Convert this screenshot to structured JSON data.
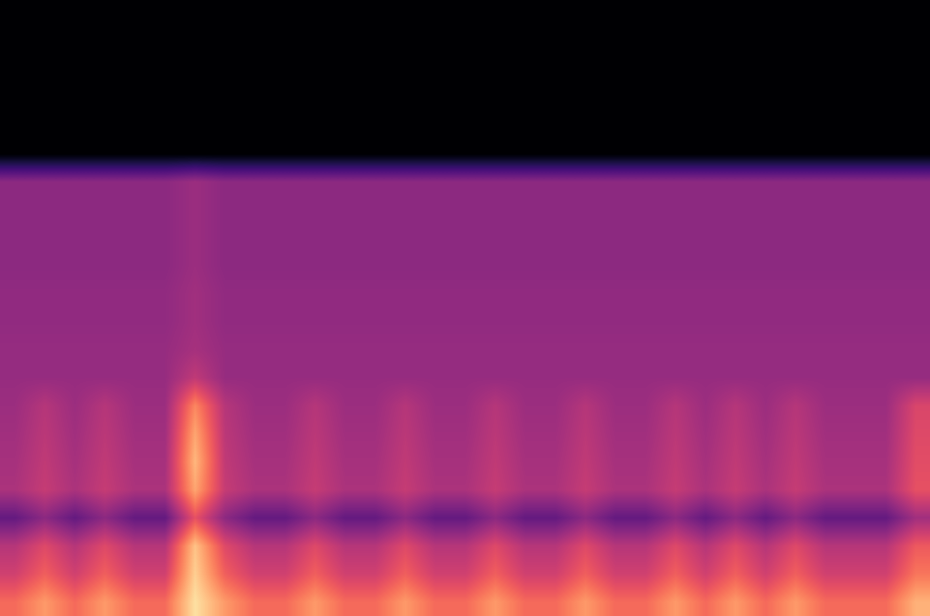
{
  "chart_data": {
    "type": "heatmap",
    "color": "magma",
    "tick_labels": false,
    "color_range": [
      -100,
      -20
    ],
    "cells": [
      [
        -100,
        -100,
        -100,
        -100,
        -100,
        -100,
        -100,
        -100,
        -100,
        -100,
        -100,
        -100,
        -100,
        -100,
        -100,
        -100,
        -100,
        -100,
        -100,
        -100,
        -100,
        -100,
        -100,
        -100,
        -100,
        -100,
        -100,
        -100,
        -100,
        -100,
        -100
      ],
      [
        -100,
        -100,
        -100,
        -100,
        -100,
        -100,
        -100,
        -100,
        -100,
        -100,
        -100,
        -100,
        -100,
        -100,
        -100,
        -100,
        -100,
        -100,
        -100,
        -100,
        -100,
        -100,
        -100,
        -100,
        -100,
        -100,
        -100,
        -100,
        -100,
        -100,
        -100
      ],
      [
        -100,
        -100,
        -100,
        -100,
        -100,
        -100,
        -100,
        -100,
        -100,
        -100,
        -100,
        -100,
        -100,
        -100,
        -100,
        -100,
        -100,
        -100,
        -100,
        -100,
        -100,
        -100,
        -100,
        -100,
        -100,
        -100,
        -100,
        -100,
        -100,
        -100,
        -100
      ],
      [
        -100,
        -100,
        -100,
        -100,
        -100,
        -100,
        -100,
        -100,
        -100,
        -100,
        -100,
        -100,
        -100,
        -100,
        -100,
        -100,
        -100,
        -100,
        -100,
        -100,
        -100,
        -100,
        -100,
        -100,
        -100,
        -100,
        -100,
        -100,
        -100,
        -100,
        -100
      ],
      [
        -100,
        -100,
        -100,
        -100,
        -100,
        -100,
        -100,
        -100,
        -100,
        -100,
        -100,
        -100,
        -100,
        -100,
        -100,
        -100,
        -100,
        -100,
        -100,
        -100,
        -100,
        -100,
        -100,
        -100,
        -100,
        -100,
        -100,
        -100,
        -100,
        -100,
        -100
      ],
      [
        -100,
        -100,
        -100,
        -100,
        -100,
        -100,
        -100,
        -100,
        -100,
        -100,
        -100,
        -100,
        -100,
        -100,
        -100,
        -100,
        -100,
        -100,
        -100,
        -100,
        -100,
        -100,
        -100,
        -100,
        -100,
        -100,
        -100,
        -100,
        -100,
        -100,
        -100
      ],
      [
        -68,
        -68,
        -68,
        -68,
        -68,
        -68,
        -65,
        -68,
        -68,
        -68,
        -68,
        -68,
        -68,
        -68,
        -68,
        -68,
        -68,
        -68,
        -68,
        -68,
        -68,
        -68,
        -68,
        -68,
        -68,
        -68,
        -68,
        -68,
        -68,
        -68,
        -68
      ],
      [
        -68,
        -68,
        -68,
        -68,
        -68,
        -68,
        -65,
        -68,
        -68,
        -68,
        -68,
        -68,
        -68,
        -68,
        -68,
        -68,
        -68,
        -68,
        -68,
        -68,
        -68,
        -68,
        -68,
        -68,
        -68,
        -68,
        -68,
        -68,
        -68,
        -68,
        -68
      ],
      [
        -68,
        -68,
        -68,
        -68,
        -68,
        -68,
        -65,
        -68,
        -68,
        -68,
        -68,
        -68,
        -68,
        -68,
        -68,
        -68,
        -68,
        -68,
        -68,
        -68,
        -68,
        -68,
        -68,
        -68,
        -68,
        -68,
        -68,
        -68,
        -68,
        -68,
        -68
      ],
      [
        -68,
        -68,
        -68,
        -68,
        -68,
        -68,
        -65,
        -68,
        -68,
        -68,
        -68,
        -68,
        -68,
        -68,
        -68,
        -68,
        -68,
        -68,
        -68,
        -68,
        -68,
        -68,
        -68,
        -68,
        -68,
        -68,
        -68,
        -68,
        -68,
        -68,
        -68
      ],
      [
        -67,
        -67,
        -67,
        -67,
        -67,
        -67,
        -64,
        -67,
        -67,
        -67,
        -67,
        -67,
        -67,
        -67,
        -67,
        -67,
        -67,
        -67,
        -67,
        -67,
        -67,
        -67,
        -67,
        -67,
        -67,
        -67,
        -67,
        -67,
        -67,
        -67,
        -67
      ],
      [
        -67,
        -67,
        -67,
        -67,
        -67,
        -67,
        -64,
        -67,
        -67,
        -67,
        -67,
        -67,
        -67,
        -67,
        -67,
        -67,
        -67,
        -67,
        -67,
        -67,
        -67,
        -67,
        -67,
        -67,
        -67,
        -67,
        -67,
        -67,
        -67,
        -67,
        -67
      ],
      [
        -66,
        -66,
        -66,
        -66,
        -66,
        -66,
        -63,
        -66,
        -66,
        -66,
        -66,
        -66,
        -66,
        -66,
        -66,
        -66,
        -66,
        -66,
        -66,
        -66,
        -66,
        -66,
        -66,
        -66,
        -66,
        -66,
        -66,
        -66,
        -66,
        -66,
        -66
      ],
      [
        -66,
        -66,
        -66,
        -66,
        -66,
        -66,
        -58,
        -66,
        -66,
        -66,
        -66,
        -66,
        -66,
        -66,
        -66,
        -66,
        -66,
        -66,
        -66,
        -66,
        -66,
        -66,
        -66,
        -66,
        -66,
        -66,
        -66,
        -66,
        -66,
        -66,
        -66
      ],
      [
        -65,
        -60,
        -65,
        -60,
        -65,
        -65,
        -40,
        -60,
        -65,
        -65,
        -60,
        -65,
        -65,
        -60,
        -65,
        -65,
        -60,
        -65,
        -65,
        -60,
        -65,
        -65,
        -60,
        -65,
        -60,
        -65,
        -60,
        -65,
        -65,
        -65,
        -53
      ],
      [
        -64,
        -59,
        -64,
        -59,
        -64,
        -64,
        -35,
        -59,
        -64,
        -64,
        -59,
        -64,
        -64,
        -59,
        -64,
        -64,
        -59,
        -64,
        -64,
        -59,
        -64,
        -64,
        -59,
        -64,
        -59,
        -64,
        -59,
        -64,
        -64,
        -64,
        -52
      ],
      [
        -63,
        -58,
        -63,
        -58,
        -63,
        -63,
        -32,
        -58,
        -63,
        -63,
        -58,
        -63,
        -63,
        -58,
        -63,
        -63,
        -58,
        -63,
        -63,
        -58,
        -63,
        -63,
        -58,
        -63,
        -58,
        -63,
        -58,
        -63,
        -63,
        -63,
        -51
      ],
      [
        -62,
        -57,
        -62,
        -57,
        -62,
        -62,
        -35,
        -57,
        -62,
        -62,
        -57,
        -62,
        -62,
        -57,
        -62,
        -62,
        -57,
        -62,
        -62,
        -57,
        -62,
        -62,
        -57,
        -62,
        -57,
        -62,
        -57,
        -62,
        -62,
        -62,
        -50
      ],
      [
        -76,
        -68,
        -76,
        -68,
        -76,
        -76,
        -50,
        -68,
        -76,
        -76,
        -68,
        -76,
        -76,
        -68,
        -76,
        -76,
        -68,
        -76,
        -76,
        -68,
        -76,
        -76,
        -68,
        -76,
        -68,
        -76,
        -68,
        -76,
        -76,
        -76,
        -64
      ],
      [
        -60,
        -52,
        -60,
        -52,
        -60,
        -60,
        -30,
        -52,
        -60,
        -60,
        -52,
        -60,
        -60,
        -52,
        -60,
        -60,
        -52,
        -60,
        -60,
        -52,
        -60,
        -60,
        -52,
        -60,
        -52,
        -60,
        -52,
        -60,
        -60,
        -60,
        -48
      ],
      [
        -55,
        -47,
        -55,
        -47,
        -55,
        -55,
        -28,
        -47,
        -55,
        -55,
        -47,
        -55,
        -55,
        -47,
        -55,
        -55,
        -47,
        -55,
        -55,
        -47,
        -55,
        -55,
        -47,
        -55,
        -47,
        -55,
        -47,
        -55,
        -55,
        -55,
        -43
      ],
      [
        -45,
        -37,
        -45,
        -37,
        -45,
        -45,
        -25,
        -37,
        -45,
        -45,
        -37,
        -45,
        -45,
        -37,
        -45,
        -45,
        -37,
        -45,
        -45,
        -37,
        -45,
        -45,
        -37,
        -45,
        -37,
        -45,
        -37,
        -45,
        -45,
        -45,
        -33
      ]
    ]
  }
}
